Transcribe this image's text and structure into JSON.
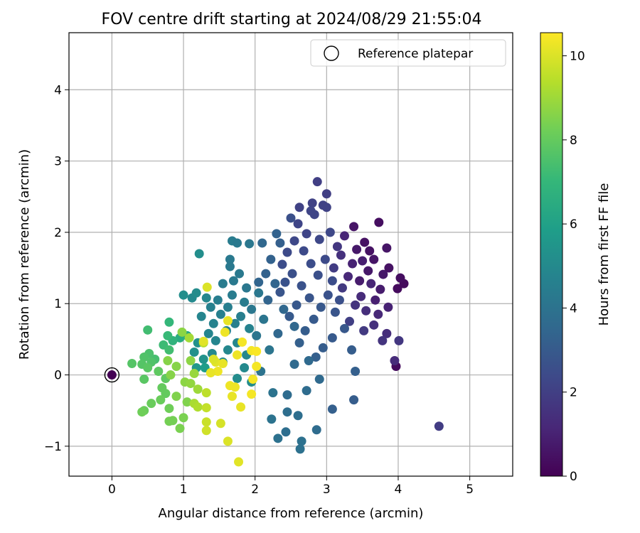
{
  "chart_data": {
    "type": "scatter",
    "title": "FOV centre drift starting at 2024/08/29 21:55:04",
    "xlabel": "Angular distance from reference (arcmin)",
    "ylabel": "Rotation from reference (arcmin)",
    "xlim": [
      -0.6,
      5.6
    ],
    "ylim": [
      -1.42,
      4.8
    ],
    "xticks": [
      0,
      1,
      2,
      3,
      4,
      5
    ],
    "xtick_labels": [
      "0",
      "1",
      "2",
      "3",
      "4",
      "5"
    ],
    "yticks": [
      -1,
      0,
      1,
      2,
      3,
      4
    ],
    "ytick_labels": [
      "−1",
      "0",
      "1",
      "2",
      "3",
      "4"
    ],
    "grid": true,
    "legend": {
      "placement": "top-right",
      "entries": [
        "Reference platepar"
      ]
    },
    "reference_point": {
      "x": 0,
      "y": 0,
      "hours": 0
    },
    "colorbar": {
      "label": "Hours from first FF file",
      "range": [
        0,
        10.55
      ],
      "ticks": [
        0,
        2,
        4,
        6,
        8,
        10
      ],
      "tick_labels": [
        "0",
        "2",
        "4",
        "6",
        "8",
        "10"
      ],
      "colormap": "viridis",
      "colormap_stops": [
        "#440154",
        "#482878",
        "#3e4989",
        "#31688e",
        "#26828e",
        "#1f9e89",
        "#35b779",
        "#6ece58",
        "#b5de2b",
        "#fde725"
      ]
    },
    "points": [
      {
        "x": 3.99,
        "y": 1.21,
        "hours": 0.3
      },
      {
        "x": 4.08,
        "y": 1.28,
        "hours": 0.3
      },
      {
        "x": 4.03,
        "y": 1.36,
        "hours": 0.4
      },
      {
        "x": 3.97,
        "y": 0.12,
        "hours": 0.3
      },
      {
        "x": 3.73,
        "y": 2.14,
        "hours": 0.4
      },
      {
        "x": 3.53,
        "y": 1.86,
        "hours": 0.5
      },
      {
        "x": 3.6,
        "y": 1.74,
        "hours": 0.5
      },
      {
        "x": 3.87,
        "y": 1.5,
        "hours": 0.5
      },
      {
        "x": 3.38,
        "y": 2.08,
        "hours": 0.6
      },
      {
        "x": 3.84,
        "y": 1.78,
        "hours": 0.6
      },
      {
        "x": 3.66,
        "y": 1.62,
        "hours": 0.6
      },
      {
        "x": 3.79,
        "y": 1.41,
        "hours": 0.7
      },
      {
        "x": 3.58,
        "y": 1.46,
        "hours": 0.7
      },
      {
        "x": 3.42,
        "y": 1.76,
        "hours": 0.7
      },
      {
        "x": 3.75,
        "y": 1.2,
        "hours": 0.8
      },
      {
        "x": 3.46,
        "y": 1.32,
        "hours": 0.8
      },
      {
        "x": 3.5,
        "y": 1.6,
        "hours": 0.9
      },
      {
        "x": 3.68,
        "y": 1.05,
        "hours": 0.9
      },
      {
        "x": 3.86,
        "y": 0.95,
        "hours": 1.0
      },
      {
        "x": 3.36,
        "y": 1.56,
        "hours": 1.0
      },
      {
        "x": 3.25,
        "y": 1.95,
        "hours": 1.1
      },
      {
        "x": 3.62,
        "y": 1.28,
        "hours": 1.1
      },
      {
        "x": 3.72,
        "y": 0.85,
        "hours": 1.2
      },
      {
        "x": 3.3,
        "y": 1.38,
        "hours": 1.2
      },
      {
        "x": 3.95,
        "y": 0.2,
        "hours": 1.3
      },
      {
        "x": 3.48,
        "y": 1.1,
        "hours": 1.3
      },
      {
        "x": 3.84,
        "y": 0.58,
        "hours": 1.4
      },
      {
        "x": 3.55,
        "y": 0.9,
        "hours": 1.4
      },
      {
        "x": 3.2,
        "y": 1.68,
        "hours": 1.5
      },
      {
        "x": 3.66,
        "y": 0.7,
        "hours": 1.5
      },
      {
        "x": 3.78,
        "y": 0.48,
        "hours": 1.6
      },
      {
        "x": 3.4,
        "y": 0.98,
        "hours": 1.6
      },
      {
        "x": 3.15,
        "y": 1.8,
        "hours": 1.7
      },
      {
        "x": 4.01,
        "y": 0.48,
        "hours": 1.7
      },
      {
        "x": 3.22,
        "y": 1.22,
        "hours": 1.8
      },
      {
        "x": 3.52,
        "y": 0.62,
        "hours": 1.8
      },
      {
        "x": 4.57,
        "y": -0.72,
        "hours": 1.9
      },
      {
        "x": 3.1,
        "y": 1.5,
        "hours": 1.9
      },
      {
        "x": 3.32,
        "y": 0.75,
        "hours": 2.0
      },
      {
        "x": 2.87,
        "y": 2.71,
        "hours": 2.0
      },
      {
        "x": 3.0,
        "y": 2.54,
        "hours": 2.0
      },
      {
        "x": 2.95,
        "y": 2.38,
        "hours": 2.1
      },
      {
        "x": 2.8,
        "y": 2.41,
        "hours": 2.1
      },
      {
        "x": 2.62,
        "y": 2.35,
        "hours": 2.1
      },
      {
        "x": 2.83,
        "y": 2.25,
        "hours": 2.2
      },
      {
        "x": 2.6,
        "y": 2.12,
        "hours": 2.2
      },
      {
        "x": 2.72,
        "y": 1.98,
        "hours": 2.2
      },
      {
        "x": 2.55,
        "y": 1.88,
        "hours": 2.3
      },
      {
        "x": 2.9,
        "y": 1.9,
        "hours": 2.3
      },
      {
        "x": 3.05,
        "y": 2.0,
        "hours": 2.3
      },
      {
        "x": 2.45,
        "y": 1.72,
        "hours": 2.4
      },
      {
        "x": 2.68,
        "y": 1.74,
        "hours": 2.4
      },
      {
        "x": 2.98,
        "y": 1.62,
        "hours": 2.4
      },
      {
        "x": 2.38,
        "y": 1.55,
        "hours": 2.5
      },
      {
        "x": 2.78,
        "y": 1.56,
        "hours": 2.5
      },
      {
        "x": 3.08,
        "y": 1.32,
        "hours": 2.5
      },
      {
        "x": 2.52,
        "y": 1.42,
        "hours": 2.6
      },
      {
        "x": 2.88,
        "y": 1.4,
        "hours": 2.6
      },
      {
        "x": 3.18,
        "y": 1.05,
        "hours": 2.6
      },
      {
        "x": 2.42,
        "y": 1.3,
        "hours": 2.7
      },
      {
        "x": 2.65,
        "y": 1.25,
        "hours": 2.7
      },
      {
        "x": 3.02,
        "y": 1.12,
        "hours": 2.7
      },
      {
        "x": 2.35,
        "y": 1.16,
        "hours": 2.8
      },
      {
        "x": 2.76,
        "y": 1.08,
        "hours": 2.8
      },
      {
        "x": 3.12,
        "y": 0.88,
        "hours": 2.8
      },
      {
        "x": 2.58,
        "y": 0.98,
        "hours": 2.9
      },
      {
        "x": 2.92,
        "y": 0.95,
        "hours": 2.9
      },
      {
        "x": 3.25,
        "y": 0.65,
        "hours": 2.9
      },
      {
        "x": 2.48,
        "y": 0.82,
        "hours": 3.0
      },
      {
        "x": 2.82,
        "y": 0.78,
        "hours": 3.0
      },
      {
        "x": 3.08,
        "y": 0.52,
        "hours": 3.0
      },
      {
        "x": 2.7,
        "y": 0.62,
        "hours": 3.1
      },
      {
        "x": 2.95,
        "y": 0.38,
        "hours": 3.1
      },
      {
        "x": 3.35,
        "y": 0.35,
        "hours": 3.1
      },
      {
        "x": 3.38,
        "y": -0.35,
        "hours": 3.1
      },
      {
        "x": 3.08,
        "y": -0.48,
        "hours": 3.2
      },
      {
        "x": 2.62,
        "y": 0.45,
        "hours": 3.2
      },
      {
        "x": 2.85,
        "y": 0.25,
        "hours": 3.2
      },
      {
        "x": 3.4,
        "y": 0.05,
        "hours": 3.2
      },
      {
        "x": 2.3,
        "y": 1.98,
        "hours": 3.3
      },
      {
        "x": 2.22,
        "y": 1.62,
        "hours": 3.3
      },
      {
        "x": 2.15,
        "y": 1.42,
        "hours": 3.3
      },
      {
        "x": 2.28,
        "y": 1.28,
        "hours": 3.4
      },
      {
        "x": 2.05,
        "y": 1.3,
        "hours": 3.4
      },
      {
        "x": 2.18,
        "y": 1.05,
        "hours": 3.4
      },
      {
        "x": 2.4,
        "y": 0.92,
        "hours": 3.5
      },
      {
        "x": 2.55,
        "y": 0.68,
        "hours": 3.5
      },
      {
        "x": 2.32,
        "y": 0.58,
        "hours": 3.5
      },
      {
        "x": 2.75,
        "y": 0.2,
        "hours": 3.6
      },
      {
        "x": 2.9,
        "y": -0.06,
        "hours": 3.6
      },
      {
        "x": 2.55,
        "y": 0.15,
        "hours": 3.6
      },
      {
        "x": 2.72,
        "y": -0.22,
        "hours": 3.7
      },
      {
        "x": 2.45,
        "y": -0.28,
        "hours": 3.7
      },
      {
        "x": 2.86,
        "y": -0.77,
        "hours": 3.7
      },
      {
        "x": 2.6,
        "y": -0.57,
        "hours": 3.8
      },
      {
        "x": 2.45,
        "y": -0.52,
        "hours": 3.8
      },
      {
        "x": 2.43,
        "y": -0.8,
        "hours": 3.8
      },
      {
        "x": 2.32,
        "y": -0.89,
        "hours": 3.9
      },
      {
        "x": 2.65,
        "y": -0.93,
        "hours": 3.9
      },
      {
        "x": 2.63,
        "y": -1.04,
        "hours": 3.9
      },
      {
        "x": 2.23,
        "y": -0.62,
        "hours": 4.0
      },
      {
        "x": 2.25,
        "y": -0.25,
        "hours": 4.0
      },
      {
        "x": 2.08,
        "y": 0.05,
        "hours": 4.0
      },
      {
        "x": 2.2,
        "y": 0.35,
        "hours": 4.1
      },
      {
        "x": 2.02,
        "y": 0.55,
        "hours": 4.1
      },
      {
        "x": 2.12,
        "y": 0.78,
        "hours": 4.1
      },
      {
        "x": 1.95,
        "y": 0.92,
        "hours": 4.2
      },
      {
        "x": 2.05,
        "y": 1.15,
        "hours": 4.2
      },
      {
        "x": 1.88,
        "y": 1.22,
        "hours": 4.2
      },
      {
        "x": 1.78,
        "y": 1.42,
        "hours": 4.3
      },
      {
        "x": 1.65,
        "y": 1.52,
        "hours": 4.3
      },
      {
        "x": 1.7,
        "y": 1.32,
        "hours": 4.3
      },
      {
        "x": 1.55,
        "y": 1.28,
        "hours": 4.4
      },
      {
        "x": 1.68,
        "y": 1.12,
        "hours": 4.4
      },
      {
        "x": 1.85,
        "y": 1.02,
        "hours": 4.4
      },
      {
        "x": 1.48,
        "y": 1.05,
        "hours": 4.5
      },
      {
        "x": 1.62,
        "y": 0.95,
        "hours": 4.5
      },
      {
        "x": 1.8,
        "y": 0.82,
        "hours": 4.5
      },
      {
        "x": 1.38,
        "y": 0.95,
        "hours": 4.6
      },
      {
        "x": 1.52,
        "y": 0.85,
        "hours": 4.6
      },
      {
        "x": 1.72,
        "y": 0.72,
        "hours": 4.6
      },
      {
        "x": 1.92,
        "y": 0.65,
        "hours": 4.7
      },
      {
        "x": 1.42,
        "y": 0.72,
        "hours": 4.7
      },
      {
        "x": 1.6,
        "y": 0.62,
        "hours": 4.7
      },
      {
        "x": 1.35,
        "y": 0.58,
        "hours": 4.8
      },
      {
        "x": 1.25,
        "y": 0.82,
        "hours": 4.8
      },
      {
        "x": 1.45,
        "y": 0.48,
        "hours": 4.8
      },
      {
        "x": 1.75,
        "y": 0.45,
        "hours": 4.9
      },
      {
        "x": 1.62,
        "y": 0.35,
        "hours": 4.9
      },
      {
        "x": 1.88,
        "y": 0.28,
        "hours": 4.9
      },
      {
        "x": 1.55,
        "y": 0.18,
        "hours": 5.0
      },
      {
        "x": 1.4,
        "y": 0.3,
        "hours": 5.0
      },
      {
        "x": 1.85,
        "y": 0.1,
        "hours": 5.0
      },
      {
        "x": 1.95,
        "y": -0.1,
        "hours": 5.1
      },
      {
        "x": 1.75,
        "y": -0.05,
        "hours": 5.1
      },
      {
        "x": 1.68,
        "y": 1.88,
        "hours": 4.4
      },
      {
        "x": 1.75,
        "y": 1.85,
        "hours": 4.3
      },
      {
        "x": 1.92,
        "y": 1.84,
        "hours": 4.2
      },
      {
        "x": 1.65,
        "y": 1.62,
        "hours": 4.3
      },
      {
        "x": 1.32,
        "y": 1.08,
        "hours": 4.9
      },
      {
        "x": 1.12,
        "y": 1.08,
        "hours": 5.0
      },
      {
        "x": 1.22,
        "y": 1.7,
        "hours": 5.2
      },
      {
        "x": 1.0,
        "y": 1.12,
        "hours": 5.2
      },
      {
        "x": 1.18,
        "y": 1.15,
        "hours": 5.1
      },
      {
        "x": 1.2,
        "y": 0.45,
        "hours": 5.3
      },
      {
        "x": 1.15,
        "y": 0.32,
        "hours": 5.3
      },
      {
        "x": 1.28,
        "y": 0.22,
        "hours": 5.4
      },
      {
        "x": 1.18,
        "y": 0.1,
        "hours": 5.6
      },
      {
        "x": 1.3,
        "y": 0.1,
        "hours": 5.8
      },
      {
        "x": 1.05,
        "y": 0.55,
        "hours": 6.2
      },
      {
        "x": 0.95,
        "y": 0.52,
        "hours": 6.5
      },
      {
        "x": 0.85,
        "y": 0.48,
        "hours": 6.8
      },
      {
        "x": 0.8,
        "y": 0.74,
        "hours": 7.0
      },
      {
        "x": 0.78,
        "y": 0.55,
        "hours": 7.1
      },
      {
        "x": 0.72,
        "y": 0.42,
        "hours": 7.2
      },
      {
        "x": 0.8,
        "y": 0.35,
        "hours": 7.3
      },
      {
        "x": 0.6,
        "y": 0.22,
        "hours": 7.4
      },
      {
        "x": 0.5,
        "y": 0.63,
        "hours": 7.3
      },
      {
        "x": 0.52,
        "y": 0.3,
        "hours": 7.5
      },
      {
        "x": 0.45,
        "y": 0.25,
        "hours": 7.6
      },
      {
        "x": 0.55,
        "y": 0.18,
        "hours": 7.6
      },
      {
        "x": 0.42,
        "y": 0.15,
        "hours": 7.7
      },
      {
        "x": 0.28,
        "y": 0.16,
        "hours": 7.7
      },
      {
        "x": 0.5,
        "y": 0.1,
        "hours": 7.8
      },
      {
        "x": 0.45,
        "y": -0.06,
        "hours": 7.8
      },
      {
        "x": 0.65,
        "y": 0.05,
        "hours": 7.9
      },
      {
        "x": 0.75,
        "y": -0.05,
        "hours": 7.9
      },
      {
        "x": 0.7,
        "y": -0.18,
        "hours": 8.0
      },
      {
        "x": 0.75,
        "y": -0.26,
        "hours": 8.0
      },
      {
        "x": 0.68,
        "y": -0.35,
        "hours": 8.1
      },
      {
        "x": 0.55,
        "y": -0.4,
        "hours": 8.1
      },
      {
        "x": 0.45,
        "y": -0.5,
        "hours": 8.1
      },
      {
        "x": 0.42,
        "y": -0.52,
        "hours": 8.2
      },
      {
        "x": 0.8,
        "y": -0.47,
        "hours": 8.2
      },
      {
        "x": 0.8,
        "y": -0.65,
        "hours": 8.3
      },
      {
        "x": 0.85,
        "y": -0.64,
        "hours": 8.3
      },
      {
        "x": 0.95,
        "y": -0.75,
        "hours": 8.4
      },
      {
        "x": 1.0,
        "y": -0.6,
        "hours": 8.4
      },
      {
        "x": 0.9,
        "y": -0.3,
        "hours": 8.5
      },
      {
        "x": 1.05,
        "y": -0.38,
        "hours": 8.5
      },
      {
        "x": 0.82,
        "y": 0.0,
        "hours": 8.6
      },
      {
        "x": 0.9,
        "y": 0.12,
        "hours": 8.6
      },
      {
        "x": 0.78,
        "y": 0.2,
        "hours": 8.6
      },
      {
        "x": 0.98,
        "y": 0.6,
        "hours": 8.7
      },
      {
        "x": 1.1,
        "y": 0.2,
        "hours": 8.7
      },
      {
        "x": 1.02,
        "y": -0.1,
        "hours": 8.7
      },
      {
        "x": 1.1,
        "y": -0.12,
        "hours": 8.8
      },
      {
        "x": 1.15,
        "y": 0.02,
        "hours": 8.9
      },
      {
        "x": 1.2,
        "y": -0.2,
        "hours": 9.0
      },
      {
        "x": 1.08,
        "y": 0.52,
        "hours": 9.1
      },
      {
        "x": 1.15,
        "y": -0.4,
        "hours": 9.2
      },
      {
        "x": 1.2,
        "y": -0.45,
        "hours": 9.3
      },
      {
        "x": 1.28,
        "y": 0.45,
        "hours": 9.4
      },
      {
        "x": 1.32,
        "y": -0.25,
        "hours": 9.5
      },
      {
        "x": 1.32,
        "y": -0.46,
        "hours": 9.6
      },
      {
        "x": 1.32,
        "y": -0.66,
        "hours": 9.7
      },
      {
        "x": 1.32,
        "y": -0.78,
        "hours": 9.8
      },
      {
        "x": 1.52,
        "y": -0.68,
        "hours": 9.9
      },
      {
        "x": 1.62,
        "y": -0.93,
        "hours": 10.0
      },
      {
        "x": 1.77,
        "y": -1.22,
        "hours": 10.1
      },
      {
        "x": 1.8,
        "y": -0.45,
        "hours": 10.2
      },
      {
        "x": 1.68,
        "y": -0.3,
        "hours": 10.2
      },
      {
        "x": 1.65,
        "y": -0.15,
        "hours": 10.3
      },
      {
        "x": 1.72,
        "y": -0.17,
        "hours": 10.3
      },
      {
        "x": 1.95,
        "y": -0.27,
        "hours": 10.4
      },
      {
        "x": 1.97,
        "y": -0.06,
        "hours": 10.4
      },
      {
        "x": 2.02,
        "y": 0.12,
        "hours": 10.4
      },
      {
        "x": 1.48,
        "y": 0.05,
        "hours": 10.3
      },
      {
        "x": 1.38,
        "y": 0.03,
        "hours": 10.2
      },
      {
        "x": 1.45,
        "y": 0.18,
        "hours": 10.1
      },
      {
        "x": 1.42,
        "y": 0.22,
        "hours": 10.0
      },
      {
        "x": 1.55,
        "y": 0.16,
        "hours": 10.2
      },
      {
        "x": 1.75,
        "y": 0.28,
        "hours": 10.3
      },
      {
        "x": 1.95,
        "y": 0.34,
        "hours": 10.4
      },
      {
        "x": 2.02,
        "y": 0.33,
        "hours": 10.5
      },
      {
        "x": 1.82,
        "y": 0.46,
        "hours": 10.4
      },
      {
        "x": 1.58,
        "y": 0.6,
        "hours": 10.3
      },
      {
        "x": 1.62,
        "y": 0.76,
        "hours": 10.2
      },
      {
        "x": 1.28,
        "y": 0.47,
        "hours": 10.1
      },
      {
        "x": 1.33,
        "y": 1.23,
        "hours": 10.0
      },
      {
        "x": 2.35,
        "y": 1.85,
        "hours": 3.2
      },
      {
        "x": 2.1,
        "y": 1.85,
        "hours": 3.5
      },
      {
        "x": 2.5,
        "y": 2.2,
        "hours": 2.6
      },
      {
        "x": 2.78,
        "y": 2.3,
        "hours": 2.2
      },
      {
        "x": 3.0,
        "y": 2.35,
        "hours": 2.1
      }
    ]
  }
}
